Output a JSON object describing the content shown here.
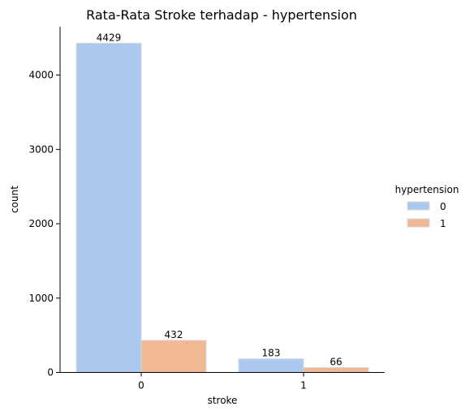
{
  "chart_data": {
    "type": "bar",
    "title": "Rata-Rata Stroke terhadap - hypertension",
    "xlabel": "stroke",
    "ylabel": "count",
    "categories": [
      "0",
      "1"
    ],
    "series": [
      {
        "name": "0",
        "values": [
          4429,
          183
        ],
        "color": "#abc9ee"
      },
      {
        "name": "1",
        "values": [
          432,
          66
        ],
        "color": "#f0b994"
      }
    ],
    "ylim": [
      0,
      4650
    ],
    "yticks": [
      0,
      1000,
      2000,
      3000,
      4000
    ],
    "grid": false,
    "legend": {
      "title": "hypertension",
      "placement": "right"
    }
  }
}
